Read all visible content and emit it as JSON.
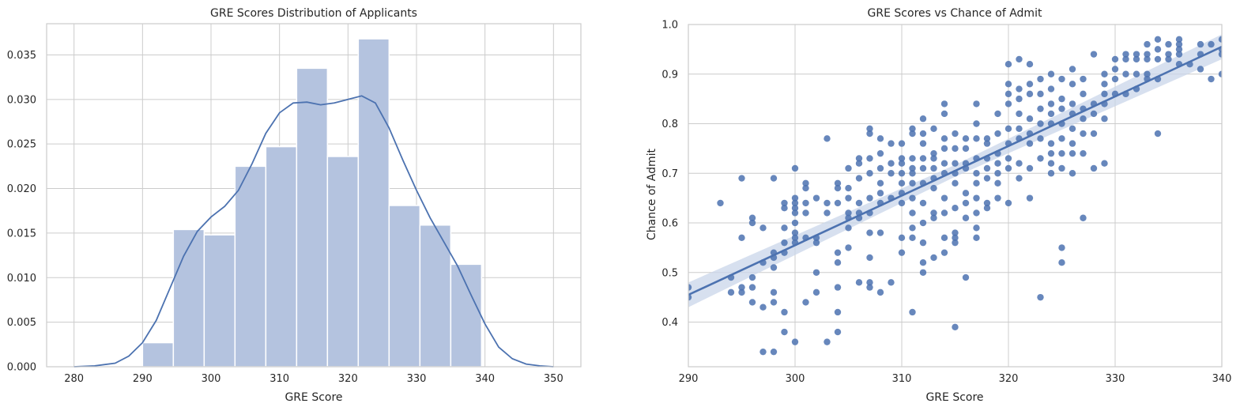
{
  "chart_data": [
    {
      "type": "bar",
      "title": "GRE Scores Distribution of Applicants",
      "xlabel": "GRE Score",
      "ylabel": "",
      "xlim": [
        276,
        354
      ],
      "ylim": [
        0,
        0.0385
      ],
      "xticks": [
        "280",
        "290",
        "300",
        "310",
        "320",
        "330",
        "340",
        "350"
      ],
      "yticks": [
        "0.000",
        "0.005",
        "0.010",
        "0.015",
        "0.020",
        "0.025",
        "0.030",
        "0.035"
      ],
      "grid": true,
      "bins": [
        {
          "start": 290.0,
          "end": 294.5,
          "value": 0.0027
        },
        {
          "start": 294.5,
          "end": 299.0,
          "value": 0.0154
        },
        {
          "start": 299.0,
          "end": 303.5,
          "value": 0.0148
        },
        {
          "start": 303.5,
          "end": 308.0,
          "value": 0.0225
        },
        {
          "start": 308.0,
          "end": 312.5,
          "value": 0.0247
        },
        {
          "start": 312.5,
          "end": 317.0,
          "value": 0.0335
        },
        {
          "start": 317.0,
          "end": 321.5,
          "value": 0.0236
        },
        {
          "start": 321.5,
          "end": 326.0,
          "value": 0.0368
        },
        {
          "start": 326.0,
          "end": 330.5,
          "value": 0.0181
        },
        {
          "start": 330.5,
          "end": 335.0,
          "value": 0.0159
        },
        {
          "start": 335.0,
          "end": 339.5,
          "value": 0.0115
        }
      ],
      "kde": {
        "x": [
          280,
          283,
          286,
          288,
          290,
          292,
          294,
          296,
          298,
          300,
          302,
          304,
          306,
          308,
          310,
          312,
          314,
          316,
          318,
          320,
          322,
          324,
          326,
          328,
          330,
          332,
          334,
          336,
          338,
          340,
          342,
          344,
          346,
          348,
          350
        ],
        "y": [
          0.0,
          0.0001,
          0.0004,
          0.0012,
          0.0027,
          0.0052,
          0.0088,
          0.0124,
          0.0152,
          0.0168,
          0.018,
          0.0198,
          0.0228,
          0.0262,
          0.0285,
          0.0296,
          0.0297,
          0.0294,
          0.0296,
          0.03,
          0.0304,
          0.0296,
          0.0268,
          0.0232,
          0.0198,
          0.0167,
          0.014,
          0.0113,
          0.008,
          0.0048,
          0.0022,
          0.0009,
          0.0003,
          0.0001,
          0.0
        ]
      },
      "colors": {
        "bars": "#b4c3df",
        "kde": "#4c72b0"
      }
    },
    {
      "type": "scatter",
      "title": "GRE Scores vs Chance of Admit",
      "xlabel": "GRE Score",
      "ylabel": "Chance of Admit",
      "xlim": [
        290,
        340
      ],
      "ylim": [
        0.31,
        1.0
      ],
      "xticks": [
        "290",
        "300",
        "310",
        "320",
        "330",
        "340"
      ],
      "yticks": [
        "0.4",
        "0.5",
        "0.6",
        "0.7",
        "0.8",
        "0.9",
        "1.0"
      ],
      "grid": true,
      "regression": {
        "x": [
          290,
          340
        ],
        "y": [
          0.455,
          0.955
        ],
        "ci": [
          0.025,
          0.012,
          0.025
        ]
      },
      "colors": {
        "points": "#4c72b0",
        "line": "#4c72b0",
        "band": "#c9d5ea"
      },
      "points": [
        [
          290,
          0.47
        ],
        [
          290,
          0.45
        ],
        [
          293,
          0.64
        ],
        [
          294,
          0.49
        ],
        [
          294,
          0.46
        ],
        [
          295,
          0.69
        ],
        [
          295,
          0.57
        ],
        [
          295,
          0.47
        ],
        [
          295,
          0.46
        ],
        [
          296,
          0.61
        ],
        [
          296,
          0.6
        ],
        [
          296,
          0.49
        ],
        [
          296,
          0.47
        ],
        [
          296,
          0.44
        ],
        [
          297,
          0.59
        ],
        [
          297,
          0.52
        ],
        [
          297,
          0.43
        ],
        [
          297,
          0.34
        ],
        [
          298,
          0.69
        ],
        [
          298,
          0.54
        ],
        [
          298,
          0.53
        ],
        [
          298,
          0.51
        ],
        [
          298,
          0.46
        ],
        [
          298,
          0.44
        ],
        [
          298,
          0.34
        ],
        [
          299,
          0.64
        ],
        [
          299,
          0.63
        ],
        [
          299,
          0.59
        ],
        [
          299,
          0.56
        ],
        [
          299,
          0.54
        ],
        [
          299,
          0.42
        ],
        [
          299,
          0.38
        ],
        [
          300,
          0.71
        ],
        [
          300,
          0.65
        ],
        [
          300,
          0.64
        ],
        [
          300,
          0.63
        ],
        [
          300,
          0.62
        ],
        [
          300,
          0.6
        ],
        [
          300,
          0.58
        ],
        [
          300,
          0.57
        ],
        [
          300,
          0.56
        ],
        [
          300,
          0.36
        ],
        [
          301,
          0.68
        ],
        [
          301,
          0.67
        ],
        [
          301,
          0.64
        ],
        [
          301,
          0.62
        ],
        [
          301,
          0.57
        ],
        [
          301,
          0.44
        ],
        [
          302,
          0.65
        ],
        [
          302,
          0.57
        ],
        [
          302,
          0.56
        ],
        [
          302,
          0.5
        ],
        [
          302,
          0.46
        ],
        [
          303,
          0.77
        ],
        [
          303,
          0.64
        ],
        [
          303,
          0.62
        ],
        [
          303,
          0.36
        ],
        [
          304,
          0.68
        ],
        [
          304,
          0.67
        ],
        [
          304,
          0.64
        ],
        [
          304,
          0.54
        ],
        [
          304,
          0.52
        ],
        [
          304,
          0.47
        ],
        [
          304,
          0.42
        ],
        [
          304,
          0.38
        ],
        [
          305,
          0.71
        ],
        [
          305,
          0.67
        ],
        [
          305,
          0.65
        ],
        [
          305,
          0.62
        ],
        [
          305,
          0.61
        ],
        [
          305,
          0.59
        ],
        [
          305,
          0.55
        ],
        [
          306,
          0.73
        ],
        [
          306,
          0.72
        ],
        [
          306,
          0.69
        ],
        [
          306,
          0.64
        ],
        [
          306,
          0.62
        ],
        [
          306,
          0.61
        ],
        [
          306,
          0.48
        ],
        [
          307,
          0.79
        ],
        [
          307,
          0.78
        ],
        [
          307,
          0.73
        ],
        [
          307,
          0.7
        ],
        [
          307,
          0.65
        ],
        [
          307,
          0.62
        ],
        [
          307,
          0.58
        ],
        [
          307,
          0.53
        ],
        [
          307,
          0.48
        ],
        [
          307,
          0.47
        ],
        [
          308,
          0.77
        ],
        [
          308,
          0.74
        ],
        [
          308,
          0.71
        ],
        [
          308,
          0.68
        ],
        [
          308,
          0.66
        ],
        [
          308,
          0.64
        ],
        [
          308,
          0.58
        ],
        [
          308,
          0.46
        ],
        [
          309,
          0.76
        ],
        [
          309,
          0.72
        ],
        [
          309,
          0.7
        ],
        [
          309,
          0.65
        ],
        [
          309,
          0.48
        ],
        [
          310,
          0.76
        ],
        [
          310,
          0.73
        ],
        [
          310,
          0.72
        ],
        [
          310,
          0.7
        ],
        [
          310,
          0.68
        ],
        [
          310,
          0.66
        ],
        [
          310,
          0.64
        ],
        [
          310,
          0.57
        ],
        [
          310,
          0.54
        ],
        [
          311,
          0.79
        ],
        [
          311,
          0.78
        ],
        [
          311,
          0.73
        ],
        [
          311,
          0.71
        ],
        [
          311,
          0.7
        ],
        [
          311,
          0.68
        ],
        [
          311,
          0.65
        ],
        [
          311,
          0.62
        ],
        [
          311,
          0.59
        ],
        [
          311,
          0.57
        ],
        [
          311,
          0.42
        ],
        [
          312,
          0.81
        ],
        [
          312,
          0.78
        ],
        [
          312,
          0.76
        ],
        [
          312,
          0.73
        ],
        [
          312,
          0.71
        ],
        [
          312,
          0.68
        ],
        [
          312,
          0.64
        ],
        [
          312,
          0.6
        ],
        [
          312,
          0.56
        ],
        [
          312,
          0.52
        ],
        [
          312,
          0.5
        ],
        [
          313,
          0.79
        ],
        [
          313,
          0.74
        ],
        [
          313,
          0.73
        ],
        [
          313,
          0.71
        ],
        [
          313,
          0.69
        ],
        [
          313,
          0.67
        ],
        [
          313,
          0.62
        ],
        [
          313,
          0.61
        ],
        [
          313,
          0.53
        ],
        [
          314,
          0.84
        ],
        [
          314,
          0.82
        ],
        [
          314,
          0.77
        ],
        [
          314,
          0.75
        ],
        [
          314,
          0.72
        ],
        [
          314,
          0.7
        ],
        [
          314,
          0.65
        ],
        [
          314,
          0.62
        ],
        [
          314,
          0.57
        ],
        [
          314,
          0.54
        ],
        [
          315,
          0.78
        ],
        [
          315,
          0.75
        ],
        [
          315,
          0.72
        ],
        [
          315,
          0.7
        ],
        [
          315,
          0.68
        ],
        [
          315,
          0.63
        ],
        [
          315,
          0.58
        ],
        [
          315,
          0.57
        ],
        [
          315,
          0.56
        ],
        [
          315,
          0.39
        ],
        [
          316,
          0.77
        ],
        [
          316,
          0.75
        ],
        [
          316,
          0.72
        ],
        [
          316,
          0.71
        ],
        [
          316,
          0.66
        ],
        [
          316,
          0.64
        ],
        [
          316,
          0.61
        ],
        [
          316,
          0.49
        ],
        [
          317,
          0.84
        ],
        [
          317,
          0.8
        ],
        [
          317,
          0.77
        ],
        [
          317,
          0.73
        ],
        [
          317,
          0.7
        ],
        [
          317,
          0.68
        ],
        [
          317,
          0.65
        ],
        [
          317,
          0.62
        ],
        [
          317,
          0.59
        ],
        [
          317,
          0.57
        ],
        [
          318,
          0.77
        ],
        [
          318,
          0.76
        ],
        [
          318,
          0.73
        ],
        [
          318,
          0.71
        ],
        [
          318,
          0.69
        ],
        [
          318,
          0.64
        ],
        [
          318,
          0.63
        ],
        [
          319,
          0.82
        ],
        [
          319,
          0.78
        ],
        [
          319,
          0.74
        ],
        [
          319,
          0.72
        ],
        [
          319,
          0.7
        ],
        [
          319,
          0.68
        ],
        [
          319,
          0.65
        ],
        [
          320,
          0.92
        ],
        [
          320,
          0.88
        ],
        [
          320,
          0.86
        ],
        [
          320,
          0.84
        ],
        [
          320,
          0.79
        ],
        [
          320,
          0.76
        ],
        [
          320,
          0.73
        ],
        [
          320,
          0.71
        ],
        [
          320,
          0.64
        ],
        [
          321,
          0.93
        ],
        [
          321,
          0.87
        ],
        [
          321,
          0.85
        ],
        [
          321,
          0.82
        ],
        [
          321,
          0.79
        ],
        [
          321,
          0.77
        ],
        [
          321,
          0.72
        ],
        [
          321,
          0.69
        ],
        [
          322,
          0.92
        ],
        [
          322,
          0.88
        ],
        [
          322,
          0.86
        ],
        [
          322,
          0.81
        ],
        [
          322,
          0.78
        ],
        [
          322,
          0.76
        ],
        [
          322,
          0.71
        ],
        [
          322,
          0.65
        ],
        [
          323,
          0.89
        ],
        [
          323,
          0.86
        ],
        [
          323,
          0.83
        ],
        [
          323,
          0.8
        ],
        [
          323,
          0.77
        ],
        [
          323,
          0.73
        ],
        [
          323,
          0.45
        ],
        [
          324,
          0.9
        ],
        [
          324,
          0.87
        ],
        [
          324,
          0.84
        ],
        [
          324,
          0.82
        ],
        [
          324,
          0.8
        ],
        [
          324,
          0.76
        ],
        [
          324,
          0.74
        ],
        [
          324,
          0.72
        ],
        [
          324,
          0.7
        ],
        [
          325,
          0.89
        ],
        [
          325,
          0.85
        ],
        [
          325,
          0.83
        ],
        [
          325,
          0.8
        ],
        [
          325,
          0.77
        ],
        [
          325,
          0.74
        ],
        [
          325,
          0.71
        ],
        [
          325,
          0.55
        ],
        [
          325,
          0.52
        ],
        [
          326,
          0.91
        ],
        [
          326,
          0.88
        ],
        [
          326,
          0.84
        ],
        [
          326,
          0.82
        ],
        [
          326,
          0.79
        ],
        [
          326,
          0.76
        ],
        [
          326,
          0.74
        ],
        [
          326,
          0.7
        ],
        [
          327,
          0.89
        ],
        [
          327,
          0.86
        ],
        [
          327,
          0.83
        ],
        [
          327,
          0.81
        ],
        [
          327,
          0.78
        ],
        [
          327,
          0.74
        ],
        [
          327,
          0.61
        ],
        [
          328,
          0.94
        ],
        [
          328,
          0.84
        ],
        [
          328,
          0.82
        ],
        [
          328,
          0.78
        ],
        [
          328,
          0.71
        ],
        [
          329,
          0.9
        ],
        [
          329,
          0.88
        ],
        [
          329,
          0.86
        ],
        [
          329,
          0.84
        ],
        [
          329,
          0.81
        ],
        [
          329,
          0.72
        ],
        [
          330,
          0.93
        ],
        [
          330,
          0.91
        ],
        [
          330,
          0.89
        ],
        [
          330,
          0.86
        ],
        [
          331,
          0.94
        ],
        [
          331,
          0.93
        ],
        [
          331,
          0.9
        ],
        [
          331,
          0.86
        ],
        [
          332,
          0.94
        ],
        [
          332,
          0.93
        ],
        [
          332,
          0.9
        ],
        [
          332,
          0.87
        ],
        [
          333,
          0.96
        ],
        [
          333,
          0.94
        ],
        [
          333,
          0.93
        ],
        [
          333,
          0.9
        ],
        [
          333,
          0.89
        ],
        [
          334,
          0.97
        ],
        [
          334,
          0.95
        ],
        [
          334,
          0.93
        ],
        [
          334,
          0.89
        ],
        [
          334,
          0.78
        ],
        [
          335,
          0.96
        ],
        [
          335,
          0.94
        ],
        [
          335,
          0.93
        ],
        [
          336,
          0.97
        ],
        [
          336,
          0.96
        ],
        [
          336,
          0.95
        ],
        [
          336,
          0.94
        ],
        [
          336,
          0.92
        ],
        [
          337,
          0.92
        ],
        [
          338,
          0.96
        ],
        [
          338,
          0.94
        ],
        [
          338,
          0.91
        ],
        [
          339,
          0.96
        ],
        [
          339,
          0.89
        ],
        [
          340,
          0.97
        ],
        [
          340,
          0.95
        ],
        [
          340,
          0.94
        ],
        [
          340,
          0.9
        ]
      ]
    }
  ]
}
